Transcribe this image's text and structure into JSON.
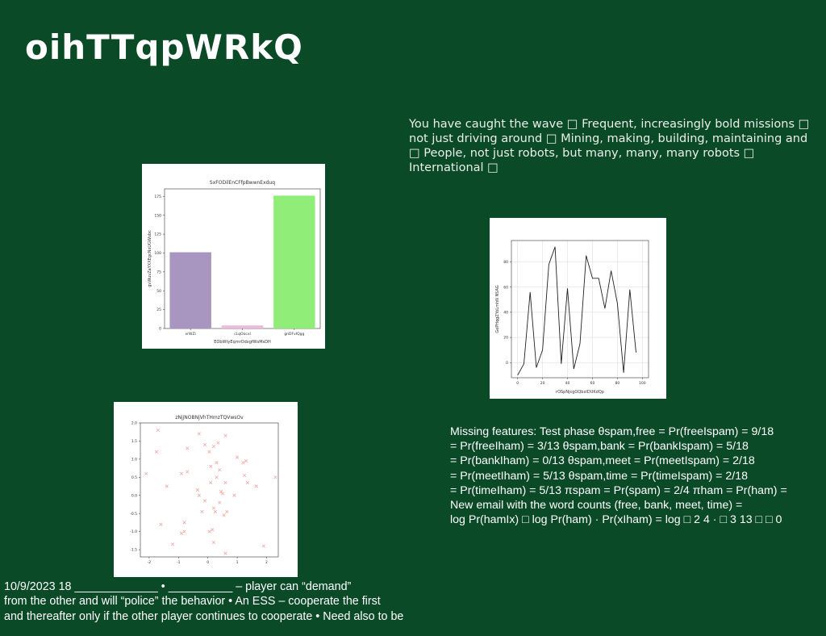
{
  "slide": {
    "title": "oihTTqpWRkQ",
    "text_block_1": "You have caught the wave □ Frequent, increasingly bold missions □\nnot just driving around □ Mining, making, building, maintaining and\n□ People, not just robots, but many, many, many robots □ International □",
    "text_block_2": "Missing features: Test phase θspam,free = Pr(freeIspam) = 9/18\n= Pr(freeIham) = 3/13 θspam,bank = Pr(bankIspam) = 5/18\n= Pr(bankIham) = 0/13 θspam,meet = Pr(meetIspam) = 2/18\n= Pr(meetIham) = 5/13 θspam,time = Pr(timeIspam) = 2/18\n= Pr(timeIham) = 5/13 πspam = Pr(spam) = 2/4 πham = Pr(ham) =\nNew email with the word counts (free, bank, meet, time) =\nlog Pr(hamIx) □ log Pr(ham) · Pr(xIham) = log □ 2 4 · □ 3 13 □ □ 0",
    "text_block_3": "10/9/2023 18 _____________ • __________ – player can “demand”\nfrom the other  and will “police” the behavior • An ESS – cooperate the first\nand thereafter only if the other player continues to cooperate • Need also to be"
  },
  "chart_data": [
    {
      "type": "bar",
      "title": "SxFODilEnCFfpBwwnExduq",
      "xlabel": "EObWtyEqmrOdxgfWsMsDH",
      "ylabel": "gvWuvZaYXXEgcNxUGWubc",
      "categories": [
        "xrWZi",
        "cLqOocxl",
        "gnDFvIQgg"
      ],
      "values": [
        101,
        4,
        176
      ],
      "colors": [
        "#a896c0",
        "#f0b8d8",
        "#90ee78"
      ],
      "ylim": [
        0,
        185
      ],
      "yticks": [
        0,
        25,
        50,
        75,
        100,
        125,
        150,
        175
      ],
      "grid": false
    },
    {
      "type": "line",
      "title": "",
      "xlabel": "rOSpNjcgOQbxIDUKdQp",
      "ylabel": "GePHqgZYoLmhN NSAG",
      "x": [
        0,
        5,
        10,
        15,
        20,
        25,
        30,
        35,
        40,
        45,
        50,
        55,
        60,
        65,
        70,
        75,
        80,
        85,
        90,
        95,
        100
      ],
      "y": [
        -10,
        -1,
        56,
        -4,
        10,
        78,
        92,
        -1,
        59,
        -5,
        15,
        85,
        67,
        67,
        43,
        73,
        47,
        -8,
        58,
        8,
        null
      ],
      "xlim": [
        -5,
        105
      ],
      "ylim": [
        -12,
        97
      ],
      "xticks": [
        0,
        20,
        40,
        60,
        80,
        100
      ],
      "yticks": [
        0,
        20,
        40,
        60,
        80
      ],
      "grid": true,
      "color": "#222222"
    },
    {
      "type": "scatter",
      "title": "zNjjNOBNjVhTHmzTQVwsOv",
      "xlabel": "",
      "ylabel": "",
      "xlim": [
        -2.3,
        2.4
      ],
      "ylim": [
        -1.7,
        2.0
      ],
      "xticks": [
        -2,
        -1,
        0,
        1,
        2
      ],
      "yticks": [
        -1.5,
        -1.0,
        -0.5,
        0.0,
        0.5,
        1.0,
        1.5,
        2.0
      ],
      "color": "#f4a6a0",
      "marker": "x",
      "points": [
        [
          -2.1,
          0.6
        ],
        [
          -1.7,
          1.8
        ],
        [
          -1.75,
          1.2
        ],
        [
          -1.4,
          0.25
        ],
        [
          -1.6,
          -0.8
        ],
        [
          -1.2,
          -1.35
        ],
        [
          -0.9,
          -1.05
        ],
        [
          -0.8,
          -0.75
        ],
        [
          -0.8,
          -1.0
        ],
        [
          -0.7,
          1.3
        ],
        [
          -0.9,
          0.6
        ],
        [
          -0.7,
          0.65
        ],
        [
          -0.3,
          1.7
        ],
        [
          -0.1,
          1.4
        ],
        [
          -0.35,
          0.15
        ],
        [
          -0.3,
          0.0
        ],
        [
          -0.2,
          -0.45
        ],
        [
          -0.1,
          -0.15
        ],
        [
          0.05,
          1.2
        ],
        [
          0.1,
          0.8
        ],
        [
          0.1,
          0.35
        ],
        [
          0.2,
          -0.35
        ],
        [
          0.2,
          1.35
        ],
        [
          0.3,
          0.9
        ],
        [
          0.3,
          0.5
        ],
        [
          0.35,
          1.45
        ],
        [
          0.25,
          -0.45
        ],
        [
          0.4,
          -0.2
        ],
        [
          0.45,
          0.1
        ],
        [
          0.5,
          0.05
        ],
        [
          0.55,
          -0.55
        ],
        [
          0.4,
          0.7
        ],
        [
          0.6,
          1.65
        ],
        [
          0.65,
          -0.45
        ],
        [
          0.6,
          0.35
        ],
        [
          0.05,
          -1.0
        ],
        [
          0.15,
          -0.95
        ],
        [
          0.2,
          -1.3
        ],
        [
          0.6,
          -1.6
        ],
        [
          0.9,
          0.0
        ],
        [
          1.0,
          1.05
        ],
        [
          1.2,
          0.9
        ],
        [
          1.25,
          0.55
        ],
        [
          1.35,
          0.35
        ],
        [
          1.3,
          0.95
        ],
        [
          1.65,
          0.25
        ],
        [
          1.9,
          -1.4
        ],
        [
          2.3,
          0.5
        ]
      ]
    }
  ]
}
